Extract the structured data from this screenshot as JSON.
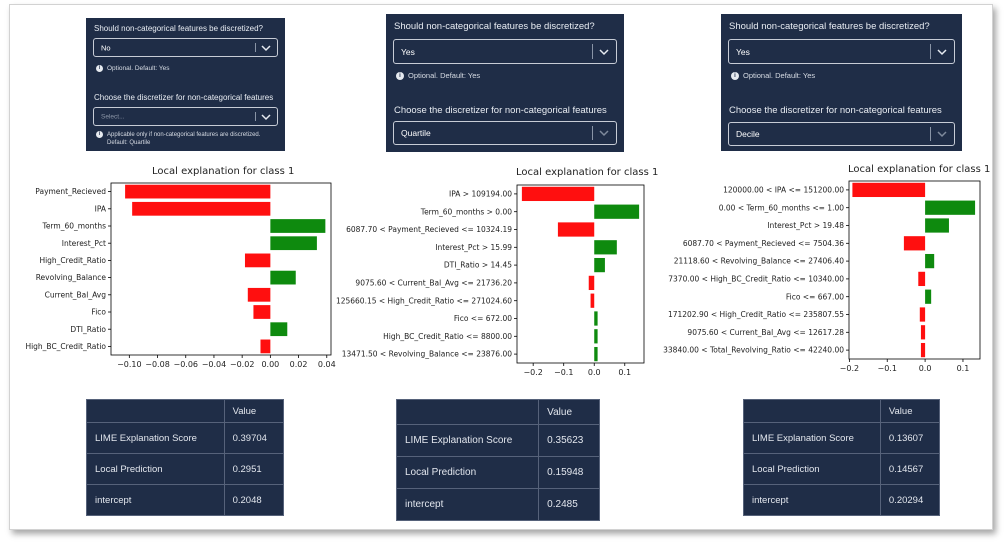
{
  "panels": [
    {
      "discretize_label": "Should non-categorical features be discretized?",
      "discretize_value": "No",
      "discretize_hint": "Optional. Default: Yes",
      "discretizer_label": "Choose the discretizer for non-categorical features",
      "discretizer_value": "Select...",
      "discretizer_hint_1": "Applicable only if non-categorical features are discretized.",
      "discretizer_hint_2": "Default: Quartile"
    },
    {
      "discretize_label": "Should non-categorical features be discretized?",
      "discretize_value": "Yes",
      "discretize_hint": "Optional. Default: Yes",
      "discretizer_label": "Choose the discretizer for non-categorical features",
      "discretizer_value": "Quartile"
    },
    {
      "discretize_label": "Should non-categorical features be discretized?",
      "discretize_value": "Yes",
      "discretize_hint": "Optional. Default: Yes",
      "discretizer_label": "Choose the discretizer for non-categorical features",
      "discretizer_value": "Decile"
    }
  ],
  "colors": {
    "positive": "#0e8a0e",
    "negative": "#ff0f0f",
    "panel_bg": "#1f2d47"
  },
  "chart_data": [
    {
      "type": "bar",
      "orientation": "horizontal",
      "title": "Local explanation for class 1",
      "categories": [
        "Payment_Recieved",
        "IPA",
        "Term_60_months",
        "Interest_Pct",
        "High_Credit_Ratio",
        "Revolving_Balance",
        "Current_Bal_Avg",
        "Fico",
        "DTI_Ratio",
        "High_BC_Credit_Ratio"
      ],
      "values": [
        -0.103,
        -0.098,
        0.039,
        0.033,
        -0.018,
        0.018,
        -0.016,
        -0.012,
        0.012,
        -0.007
      ],
      "xlim": [
        -0.113,
        0.043
      ],
      "ticks": [
        -0.1,
        -0.08,
        -0.06,
        -0.04,
        -0.02,
        0.0,
        0.02,
        0.04
      ],
      "tick_labels": [
        "−0.10",
        "−0.08",
        "−0.06",
        "−0.04",
        "−0.02",
        "0.00",
        "0.02",
        "0.04"
      ]
    },
    {
      "type": "bar",
      "orientation": "horizontal",
      "title": "Local explanation for class 1",
      "categories": [
        "IPA > 109194.00",
        "Term_60_months > 0.00",
        "6087.70 < Payment_Recieved <= 10324.19",
        "Interest_Pct > 15.99",
        "DTI_Ratio > 14.45",
        "9075.60 < Current_Bal_Avg <= 21736.20",
        "125660.15 < High_Credit_Ratio <= 271024.60",
        "Fico <= 672.00",
        "High_BC_Credit_Ratio <= 8800.00",
        "13471.50 < Revolving_Balance <= 23876.00"
      ],
      "values": [
        -0.237,
        0.147,
        -0.119,
        0.074,
        0.035,
        -0.018,
        -0.012,
        0.011,
        0.011,
        0.011
      ],
      "xlim": [
        -0.253,
        0.163
      ],
      "ticks": [
        -0.2,
        -0.1,
        0.0,
        0.1
      ],
      "tick_labels": [
        "−0.2",
        "−0.1",
        "0.0",
        "0.1"
      ]
    },
    {
      "type": "bar",
      "orientation": "horizontal",
      "title": "Local explanation for class 1",
      "categories": [
        "120000.00 < IPA <= 151200.00",
        "0.00 < Term_60_months <= 1.00",
        "Interest_Pct > 19.48",
        "6087.70 < Payment_Recieved <= 7504.36",
        "21118.60 < Revolving_Balance <= 27406.40",
        "7370.00 < High_BC_Credit_Ratio <= 10340.00",
        "Fico <= 667.00",
        "171202.90 < High_Credit_Ratio <= 235807.55",
        "9075.60 < Current_Bal_Avg <= 12617.28",
        "33840.00 < Total_Revolving_Ratio <= 42240.00"
      ],
      "values": [
        -0.192,
        0.132,
        0.063,
        -0.056,
        0.024,
        -0.018,
        0.016,
        -0.014,
        -0.011,
        -0.011
      ],
      "xlim": [
        -0.201,
        0.145
      ],
      "ticks": [
        -0.2,
        -0.1,
        0.0,
        0.1
      ],
      "tick_labels": [
        "−0.2",
        "−0.1",
        "0.0",
        "0.1"
      ]
    }
  ],
  "tables": [
    {
      "header": [
        "",
        "Value"
      ],
      "rows": [
        [
          "LIME Explanation Score",
          "0.39704"
        ],
        [
          "Local Prediction",
          "0.2951"
        ],
        [
          "intercept",
          "0.2048"
        ]
      ]
    },
    {
      "header": [
        "",
        "Value"
      ],
      "rows": [
        [
          "LIME Explanation Score",
          "0.35623"
        ],
        [
          "Local Prediction",
          "0.15948"
        ],
        [
          "intercept",
          "0.2485"
        ]
      ]
    },
    {
      "header": [
        "",
        "Value"
      ],
      "rows": [
        [
          "LIME Explanation Score",
          "0.13607"
        ],
        [
          "Local Prediction",
          "0.14567"
        ],
        [
          "intercept",
          "0.20294"
        ]
      ]
    }
  ]
}
